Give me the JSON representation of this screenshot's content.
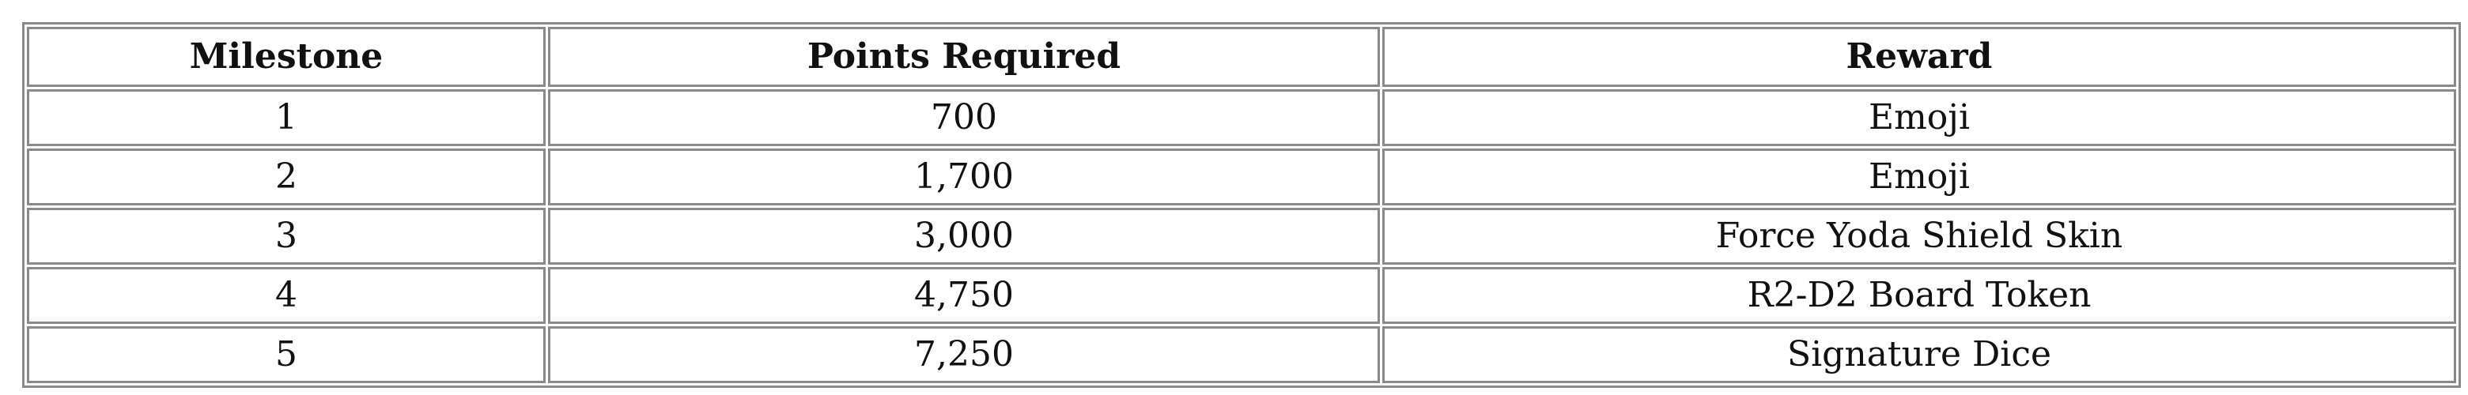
{
  "table": {
    "headers": [
      "Milestone",
      "Points Required",
      "Reward"
    ],
    "rows": [
      [
        "1",
        "700",
        "Emoji"
      ],
      [
        "2",
        "1,700",
        "Emoji"
      ],
      [
        "3",
        "3,000",
        "Force Yoda Shield Skin"
      ],
      [
        "4",
        "4,750",
        "R2-D2 Board Token"
      ],
      [
        "5",
        "7,250",
        "Signature Dice"
      ]
    ]
  }
}
